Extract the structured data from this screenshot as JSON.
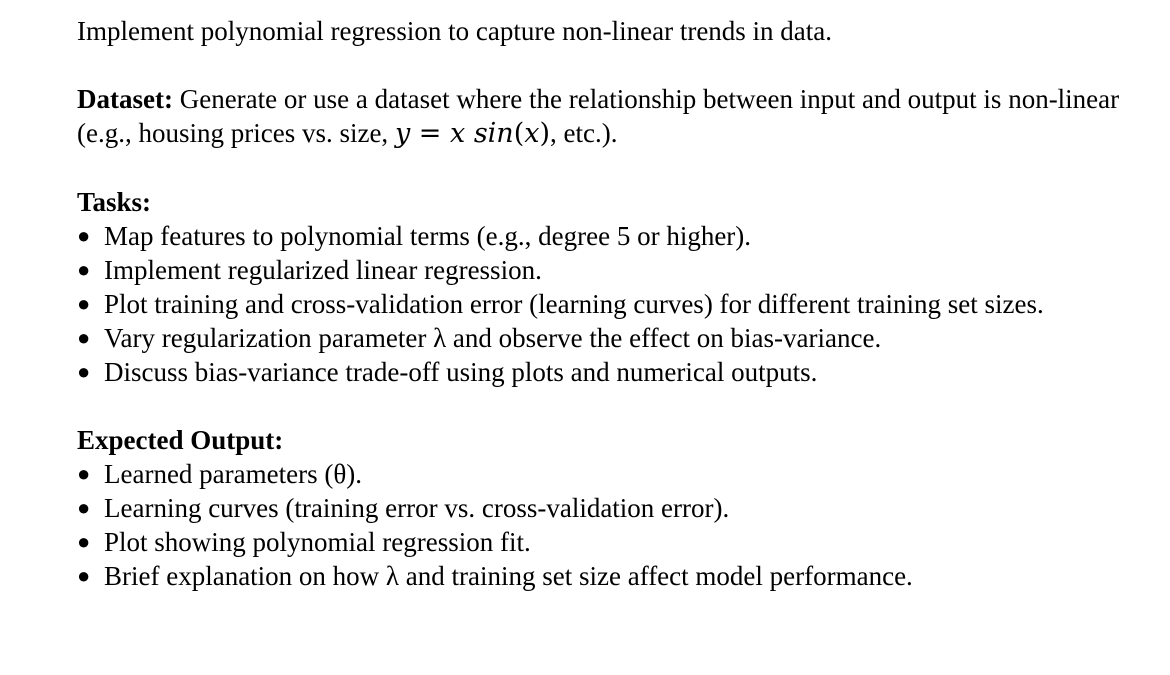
{
  "intro": "Implement polynomial regression to capture non-linear trends in data.",
  "dataset": {
    "label": "Dataset:",
    "text_before": " Generate or use a dataset where the relationship between input and output is non-linear (e.g., housing prices vs. size, ",
    "formula": {
      "lhs": "y",
      "equals": " = ",
      "x": "x ",
      "fn": "sin",
      "open": "(",
      "arg": "x",
      "close": ")"
    },
    "text_after": ", etc.)."
  },
  "tasks": {
    "heading": "Tasks:",
    "bullet_glyph": "●",
    "items": [
      "Map features to polynomial terms (e.g., degree 5 or higher).",
      "Implement regularized linear regression.",
      "Plot training and cross-validation error (learning curves) for different training set sizes.",
      "Vary regularization parameter λ and observe the effect on bias-variance.",
      "Discuss bias-variance trade-off using plots and numerical outputs."
    ]
  },
  "expected_output": {
    "heading": "Expected Output:",
    "bullet_glyph": "●",
    "items": [
      "Learned parameters (θ).",
      "Learning curves (training error vs. cross-validation error).",
      "Plot showing polynomial regression fit.",
      "Brief explanation on how λ and training set size affect model performance."
    ]
  }
}
